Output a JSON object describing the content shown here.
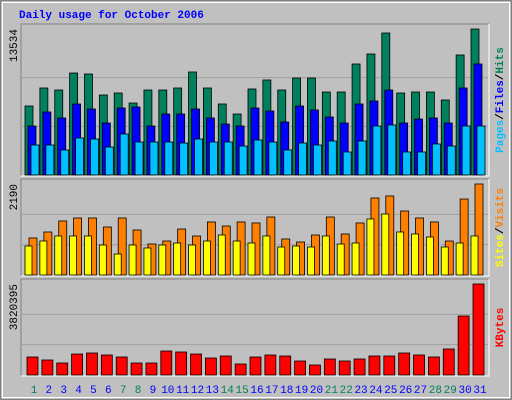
{
  "legend_separator": "/",
  "chart_data": [
    {
      "type": "bar",
      "title": "Daily usage for October 2006",
      "ylim": [
        0,
        13534
      ],
      "yticks": [
        13534
      ],
      "series": [
        {
          "name": "Hits",
          "color": "#00805c",
          "values": [
            6396,
            8065,
            7880,
            9455,
            9363,
            7416,
            7601,
            6674,
            7880,
            7880,
            8065,
            9548,
            8065,
            6582,
            5655,
            7972,
            8807,
            7880,
            8992,
            8992,
            7694,
            7694,
            10290,
            11217,
            13163,
            7601,
            7694,
            7694,
            6953,
            11124,
            13534
          ]
        },
        {
          "name": "Files",
          "color": "#0000ff",
          "values": [
            4542,
            5840,
            5284,
            6582,
            6118,
            4820,
            6211,
            6304,
            4542,
            5655,
            5655,
            6118,
            5284,
            4728,
            4542,
            6211,
            5933,
            4913,
            6396,
            6026,
            5377,
            4820,
            6582,
            6860,
            7880,
            4820,
            5191,
            5284,
            4820,
            8065,
            10290
          ]
        },
        {
          "name": "Pages",
          "color": "#00c0ff",
          "values": [
            2781,
            2781,
            2318,
            3430,
            3337,
            2596,
            3801,
            3059,
            3059,
            3059,
            2966,
            3337,
            3059,
            3059,
            2688,
            3245,
            3059,
            2318,
            2966,
            2781,
            3152,
            2132,
            3152,
            4542,
            4635,
            2132,
            2132,
            2874,
            2688,
            4542,
            4542
          ]
        }
      ]
    },
    {
      "type": "bar",
      "ylim": [
        0,
        2190
      ],
      "yticks": [
        2190
      ],
      "series": [
        {
          "name": "Visits",
          "color": "#ff8000",
          "values": [
            891,
            1035,
            1300,
            1372,
            1372,
            1155,
            1372,
            1083,
            746,
            818,
            1107,
            939,
            1276,
            1179,
            1276,
            1252,
            1396,
            867,
            794,
            963,
            1396,
            987,
            1252,
            1853,
            1902,
            1540,
            1372,
            1276,
            818,
            1829,
            2190
          ]
        },
        {
          "name": "Sites",
          "color": "#ffff00",
          "values": [
            698,
            818,
            939,
            939,
            939,
            722,
            505,
            722,
            650,
            722,
            770,
            722,
            818,
            963,
            818,
            770,
            939,
            674,
            698,
            674,
            939,
            746,
            770,
            1348,
            1468,
            1035,
            987,
            915,
            674,
            770,
            939
          ]
        }
      ]
    },
    {
      "type": "bar",
      "ylim": [
        0,
        3820395
      ],
      "yticks": [
        3820395
      ],
      "categories": [
        "1",
        "2",
        "3",
        "4",
        "5",
        "6",
        "7",
        "8",
        "9",
        "10",
        "11",
        "12",
        "13",
        "14",
        "15",
        "16",
        "17",
        "18",
        "19",
        "20",
        "21",
        "22",
        "23",
        "24",
        "25",
        "26",
        "27",
        "28",
        "29",
        "30",
        "31"
      ],
      "category_colors": [
        "#00805c",
        "#0000ff",
        "#0000ff",
        "#0000ff",
        "#0000ff",
        "#0000ff",
        "#00805c",
        "#00805c",
        "#0000ff",
        "#0000ff",
        "#0000ff",
        "#0000ff",
        "#0000ff",
        "#00805c",
        "#00805c",
        "#0000ff",
        "#0000ff",
        "#0000ff",
        "#0000ff",
        "#0000ff",
        "#00805c",
        "#00805c",
        "#0000ff",
        "#0000ff",
        "#0000ff",
        "#0000ff",
        "#0000ff",
        "#00805c",
        "#00805c",
        "#0000ff",
        "#0000ff"
      ],
      "series": [
        {
          "name": "KBytes",
          "color": "#ff0000",
          "values": [
            755676,
            629730,
            503784,
            881622,
            923604,
            839640,
            755676,
            503784,
            503784,
            1007568,
            965586,
            881622,
            713694,
            797658,
            461802,
            755676,
            839640,
            797658,
            587748,
            419820,
            671712,
            587748,
            671712,
            797658,
            797658,
            923604,
            839640,
            755676,
            1091532,
            2476938,
            3820395
          ]
        }
      ]
    }
  ]
}
